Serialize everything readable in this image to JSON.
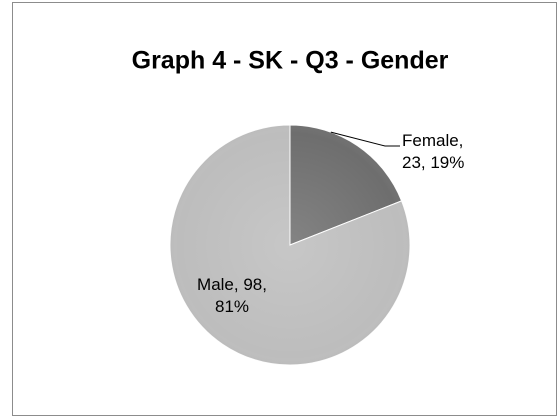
{
  "chart_data": {
    "type": "pie",
    "title": "Graph 4 - SK - Q3 - Gender",
    "values": [
      23,
      98
    ],
    "value_labels": [
      "Female, 23, 19%",
      "Male, 98, 81%"
    ],
    "colors": [
      "#6e6e6e",
      "#bdbdbd"
    ]
  }
}
